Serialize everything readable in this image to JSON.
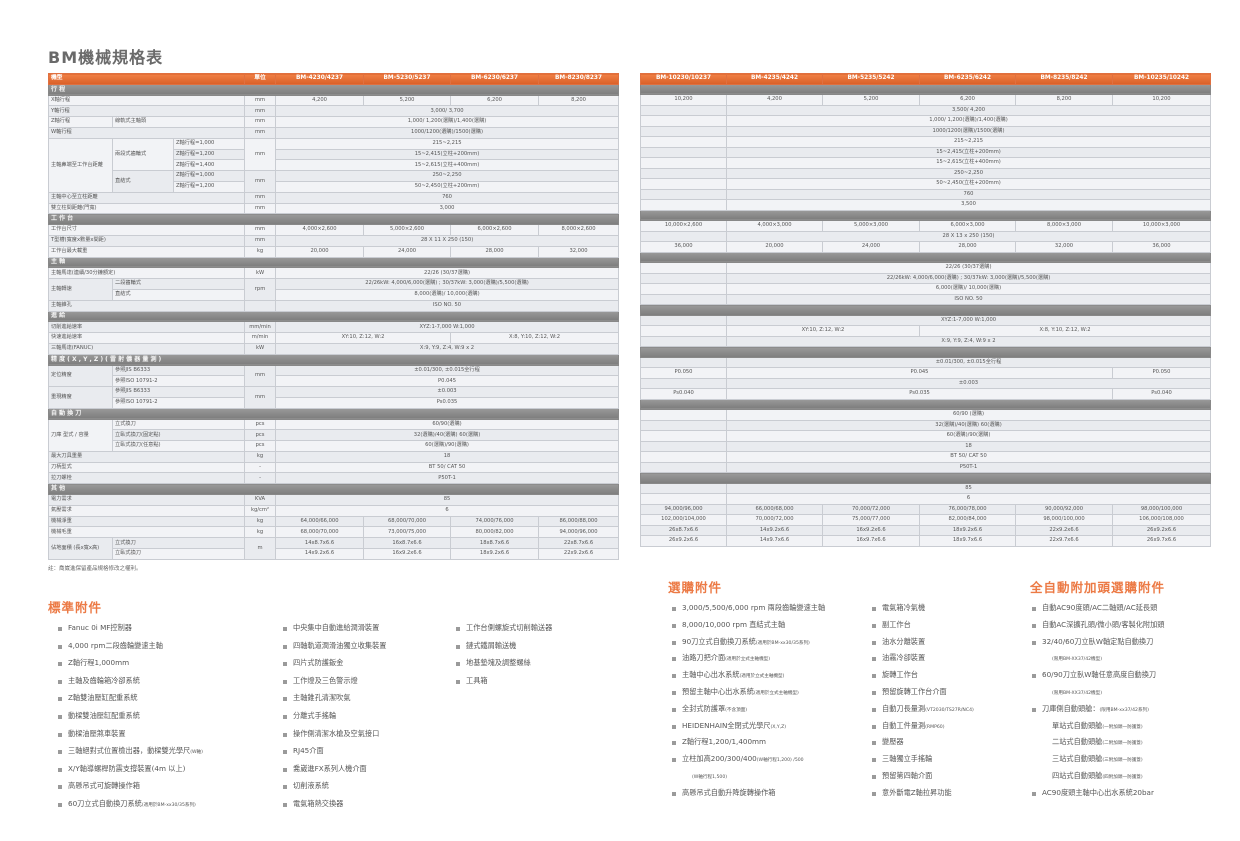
{
  "title": "BM機械規格表",
  "colors": {
    "accent": "#e8733a",
    "section_bar": "#8a8a8a",
    "row": "#eef0f3"
  },
  "left_table": {
    "header": {
      "labels": [
        "機型"
      ],
      "unit": "單位",
      "values": [
        "BM-4230/4237",
        "BM-5230/5237",
        "BM-6230/6237",
        "BM-8230/8237"
      ]
    },
    "rows": [
      {
        "section": "行 程"
      },
      {
        "labels": [
          "X軸行程"
        ],
        "unit": "mm",
        "values": [
          "4,200",
          "5,200",
          "6,200",
          "8,200"
        ]
      },
      {
        "labels": [
          "Y軸行程"
        ],
        "unit": "mm",
        "values": [
          "3,000/ 3,700"
        ]
      },
      {
        "labels": [
          "Z軸行程",
          "線軌式主軸頭"
        ],
        "unit": "mm",
        "values": [
          "1,000/ 1,200(選購)/1,400(選購)"
        ]
      },
      {
        "labels": [
          "W軸行程"
        ],
        "unit": "mm",
        "values": [
          "1000/1200(選購)/1500(選購)"
        ]
      },
      {
        "labels": [
          "主軸鼻端至工作台距離",
          "兩段式齒輪式",
          "Z軸行程=1,000"
        ],
        "unit": "mm",
        "values": [
          "215~2,215"
        ]
      },
      {
        "labels": [
          null,
          null,
          "Z軸行程=1,200"
        ],
        "unit": null,
        "values": [
          "15~2,415(立柱+200mm)"
        ]
      },
      {
        "labels": [
          null,
          null,
          "Z軸行程=1,400"
        ],
        "unit": null,
        "values": [
          "15~2,615(立柱+400mm)"
        ]
      },
      {
        "labels": [
          null,
          "直結式",
          "Z軸行程=1,000"
        ],
        "unit": "mm",
        "values": [
          "250~2,250"
        ]
      },
      {
        "labels": [
          null,
          null,
          "Z軸行程=1,200"
        ],
        "unit": null,
        "values": [
          "50~2,450(立柱+200mm)"
        ]
      },
      {
        "labels": [
          "主軸中心至立柱距離"
        ],
        "unit": "mm",
        "values": [
          "760"
        ]
      },
      {
        "labels": [
          "雙立柱間距離(門寬)"
        ],
        "unit": "mm",
        "values": [
          "3,000"
        ]
      },
      {
        "section": "工 作 台"
      },
      {
        "labels": [
          "工作台尺寸"
        ],
        "unit": "mm",
        "values": [
          "4,000×2,600",
          "5,000×2,600",
          "6,000×2,600",
          "8,000×2,600"
        ]
      },
      {
        "labels": [
          "T型槽(寬度x數量x間距)"
        ],
        "unit": "mm",
        "values": [
          "28 X 11 X 250 (150)"
        ]
      },
      {
        "labels": [
          "工作台最大載重"
        ],
        "unit": "kg",
        "values": [
          "20,000",
          "24,000",
          "28,000",
          "32,000"
        ]
      },
      {
        "section": "主 軸"
      },
      {
        "labels": [
          "主軸馬達(連續/30分鐘額定)"
        ],
        "unit": "kW",
        "values": [
          "22/26 (30/37選購)"
        ]
      },
      {
        "labels": [
          "主軸轉速",
          "二段齒輪式"
        ],
        "unit": "rpm",
        "values": [
          "22/26kW: 4,000/6,000(選購) ; 30/37kW: 3,000(選購)/5,500(選購)"
        ]
      },
      {
        "labels": [
          null,
          "直結式"
        ],
        "unit": null,
        "values": [
          "8,000(選購)/ 10,000(選購)"
        ]
      },
      {
        "labels": [
          "主軸錐孔"
        ],
        "unit": "",
        "values": [
          "ISO NO. 50"
        ]
      },
      {
        "section": "進 給"
      },
      {
        "labels": [
          "切削進給速率"
        ],
        "unit": "mm/min",
        "values": [
          "XYZ:1-7,000 W:1,000"
        ]
      },
      {
        "labels": [
          "快速進給速率"
        ],
        "unit": "m/min",
        "values": [
          "XY:10, Z:12, W:2",
          null,
          "X:8, Y:10, Z:12, W:2",
          null
        ]
      },
      {
        "labels": [
          "三軸馬達(FANUC)"
        ],
        "unit": "kW",
        "values": [
          "X:9, Y:9, Z:4, W:9 x 2"
        ]
      },
      {
        "section": "精 度 ( X , Y , Z ) ( 雷 射 儀 器 量 測 )"
      },
      {
        "labels": [
          "定位精度",
          "參照JIS B6333"
        ],
        "unit": "mm",
        "values": [
          "±0.01/300, ±0.015全行程"
        ]
      },
      {
        "labels": [
          null,
          "參照ISO 10791-2"
        ],
        "unit": null,
        "values": [
          "P0.045"
        ]
      },
      {
        "labels": [
          "重現精度",
          "參照JIS B6333"
        ],
        "unit": "mm",
        "values": [
          "±0.003"
        ]
      },
      {
        "labels": [
          null,
          "參照ISO 10791-2"
        ],
        "unit": null,
        "values": [
          "Ps0.035"
        ]
      },
      {
        "section": "自 動 換 刀"
      },
      {
        "labels": [
          "刀庫 型式 / 容量",
          "立式換刀"
        ],
        "unit": "pcs",
        "values": [
          "60/90(選購)"
        ]
      },
      {
        "labels": [
          null,
          "立臥式換刀(固定點)"
        ],
        "unit": "pcs",
        "values": [
          "32(選購)/40(選購) 60(選購)"
        ]
      },
      {
        "labels": [
          null,
          "立臥式換刀(任意點)"
        ],
        "unit": "pcs",
        "values": [
          "60(選購)/90(選購)"
        ]
      },
      {
        "labels": [
          "最大刀具重量"
        ],
        "unit": "kg",
        "values": [
          "18"
        ]
      },
      {
        "labels": [
          "刀柄型式"
        ],
        "unit": "-",
        "values": [
          "BT 50/ CAT 50"
        ]
      },
      {
        "labels": [
          "拉刀螺栓"
        ],
        "unit": "-",
        "values": [
          "P50T-1"
        ]
      },
      {
        "section": "其 他"
      },
      {
        "labels": [
          "電力需求"
        ],
        "unit": "KVA",
        "values": [
          "85"
        ]
      },
      {
        "labels": [
          "氣壓需求"
        ],
        "unit": "kg/cm²",
        "values": [
          "6"
        ]
      },
      {
        "labels": [
          "機械淨重"
        ],
        "unit": "kg",
        "values": [
          "64,000/66,000",
          "68,000/70,000",
          "74,000/76,000",
          "86,000/88,000"
        ]
      },
      {
        "labels": [
          "機械毛重"
        ],
        "unit": "kg",
        "values": [
          "68,000/70,000",
          "73,000/75,000",
          "80,000/82,000",
          "94,000/96,000"
        ]
      },
      {
        "labels": [
          "佔地面積 (長x寬x高)",
          "立式換刀"
        ],
        "unit": "m",
        "values": [
          "14x8.7x6.6",
          "16x8.7x6.6",
          "18x8.7x6.6",
          "22x8.7x6.6"
        ]
      },
      {
        "labels": [
          null,
          "立臥式換刀"
        ],
        "unit": null,
        "values": [
          "14x9.2x6.6",
          "16x9.2x6.6",
          "18x9.2x6.6",
          "22x9.2x6.6"
        ]
      }
    ]
  },
  "note": "註：喬崴進保留產品規格修改之權利。",
  "right_table": {
    "header": [
      "BM-10230/10237",
      "BM-4235/4242",
      "BM-5235/5242",
      "BM-6235/6242",
      "BM-8235/8242",
      "BM-10235/10242"
    ],
    "rows": [
      {
        "section": ""
      },
      {
        "values": [
          "10,200",
          "4,200",
          "5,200",
          "6,200",
          "8,200",
          "10,200"
        ]
      },
      {
        "values": [
          "",
          "3,500/ 4,200"
        ]
      },
      {
        "values": [
          "",
          "1,000/ 1,200(選購)/1,400(選購)"
        ]
      },
      {
        "values": [
          "",
          "1000/1200(選購)/1500(選購)"
        ]
      },
      {
        "values": [
          "",
          "215~2,215"
        ]
      },
      {
        "values": [
          "",
          "15~2,415(立柱+200mm)"
        ]
      },
      {
        "values": [
          "",
          "15~2,615(立柱+400mm)"
        ]
      },
      {
        "values": [
          "",
          "250~2,250"
        ]
      },
      {
        "values": [
          "",
          "50~2,450(立柱+200mm)"
        ]
      },
      {
        "values": [
          "",
          "760"
        ]
      },
      {
        "values": [
          "",
          "3,500"
        ]
      },
      {
        "section": ""
      },
      {
        "values": [
          "10,000×2,600",
          "4,000×3,000",
          "5,000×3,000",
          "6,000×3,000",
          "8,000×3,000",
          "10,000×3,000"
        ]
      },
      {
        "values": [
          "",
          "28 X 13 x 250 (150)"
        ]
      },
      {
        "values": [
          "36,000",
          "20,000",
          "24,000",
          "28,000",
          "32,000",
          "36,000"
        ]
      },
      {
        "section": ""
      },
      {
        "values": [
          "",
          "22/26 (30/37選購)"
        ]
      },
      {
        "values": [
          "",
          "22/26kW: 4,000/6,000(選購) ; 30/37kW: 3,000(選購)/5,500(選購)"
        ]
      },
      {
        "values": [
          "",
          "6,000(選購)/ 10,000(選購)"
        ]
      },
      {
        "values": [
          "",
          "ISO NO. 50"
        ]
      },
      {
        "section": ""
      },
      {
        "values": [
          "",
          "XYZ:1-7,000 W:1,000"
        ]
      },
      {
        "values": [
          "",
          "XY:10, Z:12, W:2",
          null,
          "X:8, Y:10, Z:12, W:2"
        ]
      },
      {
        "values": [
          "",
          "X:9, Y:9, Z:4, W:9 x 2"
        ]
      },
      {
        "section": ""
      },
      {
        "values": [
          "",
          "±0.01/300, ±0.015全行程"
        ]
      },
      {
        "values": [
          "P0.050",
          "P0.045",
          null,
          null,
          null,
          "P0.050"
        ]
      },
      {
        "values": [
          "",
          "±0.003"
        ]
      },
      {
        "values": [
          "Ps0.040",
          "Ps0.035",
          null,
          null,
          null,
          "Ps0.040"
        ]
      },
      {
        "section": ""
      },
      {
        "values": [
          "",
          "60/90 (選購)"
        ]
      },
      {
        "values": [
          "",
          "32(選購)/40(選購) 60(選購)"
        ]
      },
      {
        "values": [
          "",
          "60(選購)/90(選購)"
        ]
      },
      {
        "values": [
          "",
          "18"
        ]
      },
      {
        "values": [
          "",
          "BT 50/ CAT 50"
        ]
      },
      {
        "values": [
          "",
          "P50T-1"
        ]
      },
      {
        "section": ""
      },
      {
        "values": [
          "",
          "85"
        ]
      },
      {
        "values": [
          "",
          "6"
        ]
      },
      {
        "values": [
          "94,000/96,000",
          "66,000/68,000",
          "70,000/72,000",
          "76,000/78,000",
          "90,000/92,000",
          "98,000/100,000"
        ]
      },
      {
        "values": [
          "102,000/104,000",
          "70,000/72,000",
          "75,000/77,000",
          "82,000/84,000",
          "98,000/100,000",
          "106,000/108,000"
        ]
      },
      {
        "values": [
          "26x8.7x6.6",
          "14x9.2x6.6",
          "16x9.2x6.6",
          "18x9.2x6.6",
          "22x9.2x6.6",
          "26x9.2x6.6"
        ]
      },
      {
        "values": [
          "26x9.2x6.6",
          "14x9.7x6.6",
          "16x9.7x6.6",
          "18x9.7x6.6",
          "22x9.7x6.6",
          "26x9.7x6.6"
        ]
      }
    ]
  },
  "standard": {
    "title": "標準附件",
    "columns": [
      [
        {
          "text": "Fanuc 0i MF控制器"
        },
        {
          "text": "4,000 rpm二段齒輪變速主軸"
        },
        {
          "text": "Z軸行程1,000mm"
        },
        {
          "text": "主軸及齒輪箱冷卻系統"
        },
        {
          "text": "Z軸雙油壓缸配重系統"
        },
        {
          "text": "動樑雙油壓缸配重系統"
        },
        {
          "text": "動樑油壓煞車裝置"
        },
        {
          "text": "三軸絕對式位置檢出器，動樑雙光學尺",
          "note": "(W軸)"
        },
        {
          "text": "X/Y軸導螺桿防震支撐裝置(4m 以上)"
        },
        {
          "text": "高懸吊式可旋轉操作箱"
        },
        {
          "text": "60刀立式自動換刀系統",
          "note": "(適用於BM-xx30/35系列)"
        }
      ],
      [
        {
          "text": "中央集中自動進給潤滑裝置"
        },
        {
          "text": "四軸軌道潤滑油獨立收集裝置"
        },
        {
          "text": "四片式防護鈑金"
        },
        {
          "text": "工作燈及三色警示燈"
        },
        {
          "text": "主軸錐孔清潔吹氣"
        },
        {
          "text": "分離式手搖輪"
        },
        {
          "text": "操作側清潔水槍及空氣接口"
        },
        {
          "text": "RJ45介面"
        },
        {
          "text": "喬崴進FX系列人機介面"
        },
        {
          "text": "切削液系統"
        },
        {
          "text": "電氣箱熱交換器"
        }
      ],
      [
        {
          "text": "工作台側螺旋式切削輸送器"
        },
        {
          "text": "鏈式鐵屑輸送機"
        },
        {
          "text": "地基墊塊及調整螺絲"
        },
        {
          "text": "工具箱"
        }
      ]
    ]
  },
  "optional": {
    "title": "選購附件",
    "columns": [
      [
        {
          "text": "3,000/5,500/6,000 rpm 兩段齒輪變速主軸"
        },
        {
          "text": "8,000/10,000 rpm 直結式主軸"
        },
        {
          "text": "90刀立式自動換刀系統",
          "note": "(適用於BM-xx30/35系列)"
        },
        {
          "text": "油路刀把介面",
          "note": "(適用於立式主軸機型)"
        },
        {
          "text": "主軸中心出水系統",
          "note": "(適用於立式主軸機型)"
        },
        {
          "text": "預留主軸中心出水系統",
          "note": "(適用於立式主軸機型)"
        },
        {
          "text": "全封式防護罩",
          "note": "(不含頂面)"
        },
        {
          "text": "HEIDENHAIN全閉式光學尺",
          "note": "(X,Y,Z)"
        },
        {
          "text": "Z軸行程1,200/1,400mm"
        },
        {
          "text": "立柱加高200/300/400",
          "note": "(W軸行程1,200) /500"
        },
        {
          "text": "",
          "note": "(W軸行程1,500)",
          "cont": true
        },
        {
          "text": "高懸吊式自動升降旋轉操作箱"
        }
      ],
      [
        {
          "text": "電氣箱冷氣機"
        },
        {
          "text": "副工作台"
        },
        {
          "text": "油水分離裝置"
        },
        {
          "text": "油霧冷卻裝置"
        },
        {
          "text": "旋轉工作台"
        },
        {
          "text": "預留旋轉工作台介面"
        },
        {
          "text": "自動刀長量測",
          "note": "(VT2030/TS27R/NC4)"
        },
        {
          "text": "自動工件量測",
          "note": "(RMP60)"
        },
        {
          "text": "變壓器"
        },
        {
          "text": "三軸獨立手搖輪"
        },
        {
          "text": "預留第四軸介面"
        },
        {
          "text": "意外斷電Z軸拉昇功能"
        }
      ]
    ]
  },
  "auto_head": {
    "title": "全自動附加頭選購附件",
    "items": [
      {
        "text": "自動AC90度頭/AC二軸頭/AC延長頭"
      },
      {
        "text": "自動AC深擴孔頭/微小頭/客製化附加頭"
      },
      {
        "text": "32/40/60刀立臥W軸定點自動換刀"
      },
      {
        "text": "",
        "note": "(限用BM-XX37/42機型)",
        "sub": true
      },
      {
        "text": "60/90刀立臥W軸任意高度自動換刀"
      },
      {
        "text": "",
        "note": "(限用BM-XX37/42機型)",
        "sub": true
      },
      {
        "text": "刀庫側自動頭艙：",
        "note": "(限用BM-xx37/42系列)"
      },
      {
        "text": "單站式自動頭艙",
        "note": "(一附加頭一防護蓋)",
        "cont": true
      },
      {
        "text": "二站式自動頭艙",
        "note": "(二附加頭一防護蓋)",
        "cont": true
      },
      {
        "text": "三站式自動頭艙",
        "note": "(三附加頭一防護蓋)",
        "cont": true
      },
      {
        "text": "四站式自動頭艙",
        "note": "(四附加頭一防護蓋)",
        "cont": true
      },
      {
        "text": "AC90度頭主軸中心出水系統20bar"
      }
    ]
  }
}
